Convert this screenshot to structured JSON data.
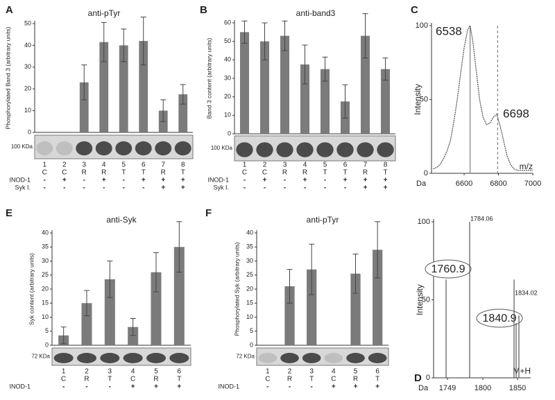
{
  "chart_data": [
    {
      "type": "bar",
      "panel": "A",
      "title": "anti-pTyr",
      "ylabel": "Phosphorylated Band 3 (arbitrary units)",
      "categories": [
        "1",
        "2",
        "3",
        "4",
        "5",
        "6",
        "7",
        "8"
      ],
      "values": [
        null,
        null,
        23,
        41.5,
        40,
        42,
        10,
        17.5
      ],
      "errors": [
        null,
        null,
        8,
        9,
        7.5,
        11,
        5,
        4.5
      ],
      "lane_letters": [
        "C",
        "C",
        "R",
        "R",
        "T",
        "T",
        "R",
        "T"
      ],
      "treatments": [
        {
          "name": "INOD-1",
          "signs": [
            "-",
            "+",
            "-",
            "+",
            "-",
            "+",
            "+",
            "+"
          ]
        },
        {
          "name": "Syk I.",
          "signs": [
            "-",
            "-",
            "-",
            "-",
            "-",
            "-",
            "+",
            "+"
          ]
        }
      ],
      "blot_label": "100 KDa",
      "color": "#7b7b7b",
      "ylim": [
        0,
        50
      ],
      "yticks": [
        0,
        10,
        20,
        30,
        40,
        50
      ]
    },
    {
      "type": "bar",
      "panel": "B",
      "title": "anti-band3",
      "ylabel": "Band 3 content (arbitrary units)",
      "categories": [
        "1",
        "2",
        "3",
        "4",
        "5",
        "6",
        "7",
        "8"
      ],
      "values": [
        55,
        50,
        53,
        37.5,
        35,
        17.5,
        53,
        35
      ],
      "errors": [
        6,
        10,
        8,
        10.5,
        6.5,
        9,
        12,
        6
      ],
      "lane_letters": [
        "C",
        "C",
        "R",
        "R",
        "T",
        "T",
        "R",
        "T"
      ],
      "treatments": [
        {
          "name": "INOD-1",
          "signs": [
            "-",
            "+",
            "-",
            "+",
            "-",
            "+",
            "+",
            "+"
          ]
        },
        {
          "name": "Syk I.",
          "signs": [
            "-",
            "-",
            "-",
            "-",
            "-",
            "-",
            "+",
            "+"
          ]
        }
      ],
      "blot_label": "100 KDa",
      "color": "#7b7b7b",
      "ylim": [
        0,
        60
      ],
      "yticks": [
        0,
        10,
        20,
        30,
        40,
        50,
        60
      ]
    },
    {
      "type": "line",
      "panel": "C",
      "ylabel": "Intensity",
      "xlabel": "m/z",
      "xunit": "Da",
      "x": [
        6420,
        6440,
        6460,
        6480,
        6500,
        6520,
        6540,
        6560,
        6580,
        6600,
        6620,
        6635,
        6650,
        6670,
        6690,
        6710,
        6730,
        6750,
        6770,
        6790,
        6810,
        6830,
        6850,
        6870,
        6890,
        6910,
        6940,
        6970,
        7000
      ],
      "values": [
        3,
        4,
        6,
        10,
        15,
        22,
        35,
        50,
        68,
        85,
        97,
        100,
        90,
        70,
        50,
        38,
        33,
        34,
        38,
        40,
        32,
        22,
        12,
        6,
        3,
        2,
        2,
        2,
        2
      ],
      "reference_lines": [
        6635,
        6795
      ],
      "annotations": [
        "6538",
        "6698"
      ],
      "color": "#555555",
      "xlim": [
        6410,
        7000
      ],
      "xticks": [
        6600,
        6800,
        7000
      ],
      "ylim": [
        0,
        100
      ],
      "yticks": [
        0,
        50,
        100
      ]
    },
    {
      "type": "bar",
      "panel": "E",
      "title": "anti-Syk",
      "ylabel": "Syk content (arbitrary units)",
      "categories": [
        "1",
        "2",
        "3",
        "4",
        "5",
        "6"
      ],
      "values": [
        3.5,
        15,
        23.5,
        6.5,
        26,
        35
      ],
      "errors": [
        3,
        4.5,
        6.5,
        3,
        7,
        9
      ],
      "lane_letters": [
        "C",
        "R",
        "T",
        "C",
        "R",
        "T"
      ],
      "treatments": [
        {
          "name": "INOD-1",
          "signs": [
            "-",
            "-",
            "-",
            "+",
            "+",
            "+"
          ]
        }
      ],
      "blot_label": "72 KDa",
      "color": "#7b7b7b",
      "ylim": [
        0,
        40
      ],
      "yticks": [
        0,
        5,
        10,
        15,
        20,
        25,
        30,
        35,
        40
      ]
    },
    {
      "type": "bar",
      "panel": "F",
      "title": "anti-pTyr",
      "ylabel": "Phosphorylated Syk (arbitrary units)",
      "categories": [
        "1",
        "2",
        "3",
        "4",
        "5",
        "6"
      ],
      "values": [
        null,
        21,
        27,
        null,
        25.5,
        34
      ],
      "errors": [
        null,
        6,
        9,
        null,
        7,
        10
      ],
      "lane_letters": [
        "C",
        "R",
        "T",
        "C",
        "R",
        "T"
      ],
      "treatments": [
        {
          "name": "INOD-1",
          "signs": [
            "-",
            "-",
            "-",
            "+",
            "+",
            "+"
          ]
        }
      ],
      "blot_label": "72 KDa",
      "color": "#7b7b7b",
      "ylim": [
        0,
        40
      ],
      "yticks": [
        0,
        5,
        10,
        15,
        20,
        25,
        30,
        35,
        40
      ]
    },
    {
      "type": "stem",
      "panel": "D",
      "ylabel": "Intensity",
      "xlabel": "M+H",
      "xunit": "Da",
      "x": [
        1747,
        1781,
        1845,
        1848,
        1852
      ],
      "values": [
        63,
        100,
        63,
        35,
        40
      ],
      "annotations": [
        "1784.06",
        "1834.02"
      ],
      "circled": [
        "1760.9",
        "1840.9"
      ],
      "color": "#555555",
      "xlim": [
        1729,
        1869
      ],
      "xticks": [
        1749,
        1800,
        1850
      ],
      "ylim": [
        0,
        100
      ],
      "yticks": [
        0,
        50,
        100
      ]
    }
  ]
}
